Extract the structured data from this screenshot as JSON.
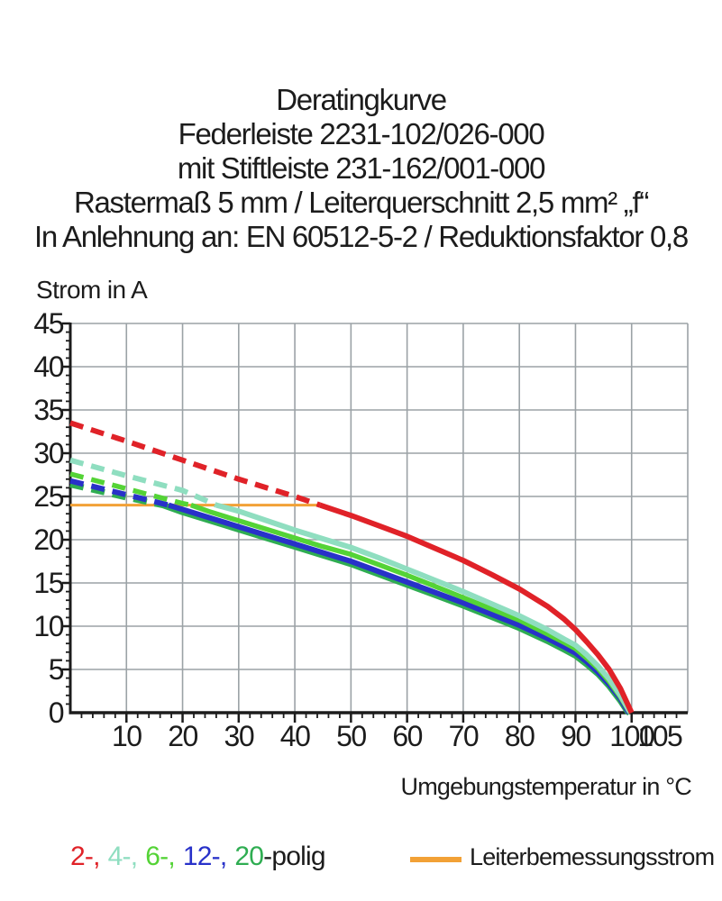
{
  "title": {
    "lines": [
      "Deratingkurve",
      "Federleiste 2231-102/026-000",
      "mit Stiftleiste 231-162/001-000",
      "Rastermaß 5 mm / Leiterquerschnitt 2,5 mm² „f“",
      "In Anlehnung an: EN 60512-5-2 / Reduktionsfaktor 0,8"
    ]
  },
  "legend": {
    "pole_items": [
      {
        "text": "2-,",
        "color": "#e02228"
      },
      {
        "text": "4-,",
        "color": "#8fdec0"
      },
      {
        "text": "6-,",
        "color": "#54d336"
      },
      {
        "text": "12-,",
        "color": "#2831c9"
      },
      {
        "text": "20",
        "color": "#2fad52"
      }
    ],
    "suffix": "-polig",
    "rated_label": "Leiterbemessungsstrom",
    "rated_color": "#f2a136"
  },
  "chart_data": {
    "type": "line",
    "title": "Deratingkurve",
    "xlabel": "Umgebungstemperatur in °C",
    "ylabel": "Strom in A",
    "grid": true,
    "grid_color": "#9ba2a6",
    "axis_color": "#1c1c1c",
    "x_axis": {
      "min": 0,
      "max": 110,
      "gridline_step": 10,
      "minor_tick_step": 2,
      "tick_labels": [
        10,
        20,
        30,
        40,
        50,
        60,
        70,
        80,
        90,
        100,
        105
      ]
    },
    "y_axis": {
      "min": 0,
      "max": 45,
      "gridline_step": 5,
      "minor_tick_step": 1,
      "tick_labels": [
        0,
        5,
        10,
        15,
        20,
        25,
        30,
        35,
        40,
        45
      ]
    },
    "rated_current_line": {
      "label": "Leiterbemessungsstrom",
      "color": "#f2a136",
      "value_a": 24,
      "x_start": 0,
      "x_end": 44.5,
      "width": 3
    },
    "note": "dashed above rated current, solid below; x in °C, y in A",
    "series": [
      {
        "name": "20-polig",
        "poles": 20,
        "color": "#2fad52",
        "width": 7,
        "dashed": [
          [
            0,
            26.4
          ],
          [
            10,
            24.9
          ],
          [
            16.5,
            24.0
          ]
        ],
        "solid": [
          [
            16.5,
            24.0
          ],
          [
            20,
            23.2
          ],
          [
            25,
            22.2
          ],
          [
            30,
            21.2
          ],
          [
            35,
            20.2
          ],
          [
            40,
            19.2
          ],
          [
            45,
            18.2
          ],
          [
            50,
            17.2
          ],
          [
            55,
            16.0
          ],
          [
            60,
            14.8
          ],
          [
            65,
            13.6
          ],
          [
            70,
            12.4
          ],
          [
            75,
            11.1
          ],
          [
            80,
            9.8
          ],
          [
            85,
            8.3
          ],
          [
            88,
            7.3
          ],
          [
            90,
            6.6
          ],
          [
            92,
            5.6
          ],
          [
            94,
            4.5
          ],
          [
            96,
            3.1
          ],
          [
            98,
            1.4
          ],
          [
            99.3,
            0.1
          ],
          [
            99.6,
            0
          ]
        ]
      },
      {
        "name": "12-polig",
        "poles": 12,
        "color": "#2831c9",
        "width": 6,
        "dashed": [
          [
            0,
            26.8
          ],
          [
            10,
            25.2
          ],
          [
            17.5,
            24.0
          ]
        ],
        "solid": [
          [
            17.5,
            24.0
          ],
          [
            20,
            23.5
          ],
          [
            25,
            22.5
          ],
          [
            30,
            21.5
          ],
          [
            35,
            20.5
          ],
          [
            40,
            19.5
          ],
          [
            45,
            18.5
          ],
          [
            50,
            17.5
          ],
          [
            55,
            16.3
          ],
          [
            60,
            15.1
          ],
          [
            65,
            13.9
          ],
          [
            70,
            12.7
          ],
          [
            75,
            11.4
          ],
          [
            80,
            10.1
          ],
          [
            85,
            8.6
          ],
          [
            88,
            7.6
          ],
          [
            90,
            6.9
          ],
          [
            92,
            5.9
          ],
          [
            94,
            4.7
          ],
          [
            96,
            3.3
          ],
          [
            98,
            1.6
          ],
          [
            99.3,
            0.2
          ],
          [
            99.6,
            0
          ]
        ]
      },
      {
        "name": "6-polig",
        "poles": 6,
        "color": "#54d336",
        "width": 5.5,
        "dashed": [
          [
            0,
            27.6
          ],
          [
            10,
            25.9
          ],
          [
            20,
            24.2
          ],
          [
            21.5,
            24.0
          ]
        ],
        "solid": [
          [
            21.5,
            24.0
          ],
          [
            25,
            23.2
          ],
          [
            30,
            22.2
          ],
          [
            35,
            21.2
          ],
          [
            40,
            20.2
          ],
          [
            45,
            19.2
          ],
          [
            50,
            18.3
          ],
          [
            55,
            17.1
          ],
          [
            60,
            15.9
          ],
          [
            65,
            14.6
          ],
          [
            70,
            13.3
          ],
          [
            75,
            12.0
          ],
          [
            80,
            10.7
          ],
          [
            85,
            9.1
          ],
          [
            88,
            8.1
          ],
          [
            90,
            7.4
          ],
          [
            92,
            6.3
          ],
          [
            94,
            5.1
          ],
          [
            96,
            3.6
          ],
          [
            98,
            1.8
          ],
          [
            99.5,
            0.2
          ],
          [
            99.8,
            0
          ]
        ]
      },
      {
        "name": "4-polig",
        "poles": 4,
        "color": "#8fdec0",
        "width": 6,
        "dashed": [
          [
            0,
            29.2
          ],
          [
            10,
            27.4
          ],
          [
            20,
            25.7
          ],
          [
            26,
            24.0
          ]
        ],
        "solid": [
          [
            26,
            24.0
          ],
          [
            30,
            23.3
          ],
          [
            35,
            22.2
          ],
          [
            40,
            21.1
          ],
          [
            45,
            20.1
          ],
          [
            50,
            19.1
          ],
          [
            55,
            17.9
          ],
          [
            60,
            16.6
          ],
          [
            65,
            15.3
          ],
          [
            70,
            14.0
          ],
          [
            75,
            12.6
          ],
          [
            80,
            11.2
          ],
          [
            85,
            9.6
          ],
          [
            88,
            8.5
          ],
          [
            90,
            7.8
          ],
          [
            92,
            6.7
          ],
          [
            94,
            5.4
          ],
          [
            96,
            3.9
          ],
          [
            98,
            2.0
          ],
          [
            99.5,
            0.3
          ],
          [
            99.8,
            0
          ]
        ]
      },
      {
        "name": "2-polig",
        "poles": 2,
        "color": "#e02228",
        "width": 6,
        "dashed": [
          [
            0,
            33.5
          ],
          [
            10,
            31.4
          ],
          [
            20,
            29.2
          ],
          [
            30,
            27.0
          ],
          [
            40,
            25.0
          ],
          [
            44.5,
            24.0
          ]
        ],
        "solid": [
          [
            44.5,
            24.0
          ],
          [
            50,
            22.8
          ],
          [
            55,
            21.6
          ],
          [
            60,
            20.4
          ],
          [
            65,
            19.0
          ],
          [
            70,
            17.6
          ],
          [
            75,
            16.0
          ],
          [
            80,
            14.3
          ],
          [
            85,
            12.3
          ],
          [
            88,
            10.8
          ],
          [
            90,
            9.6
          ],
          [
            92,
            8.2
          ],
          [
            94,
            6.7
          ],
          [
            96,
            5.0
          ],
          [
            98,
            2.8
          ],
          [
            99.5,
            0.7
          ],
          [
            100,
            0
          ]
        ]
      }
    ]
  }
}
